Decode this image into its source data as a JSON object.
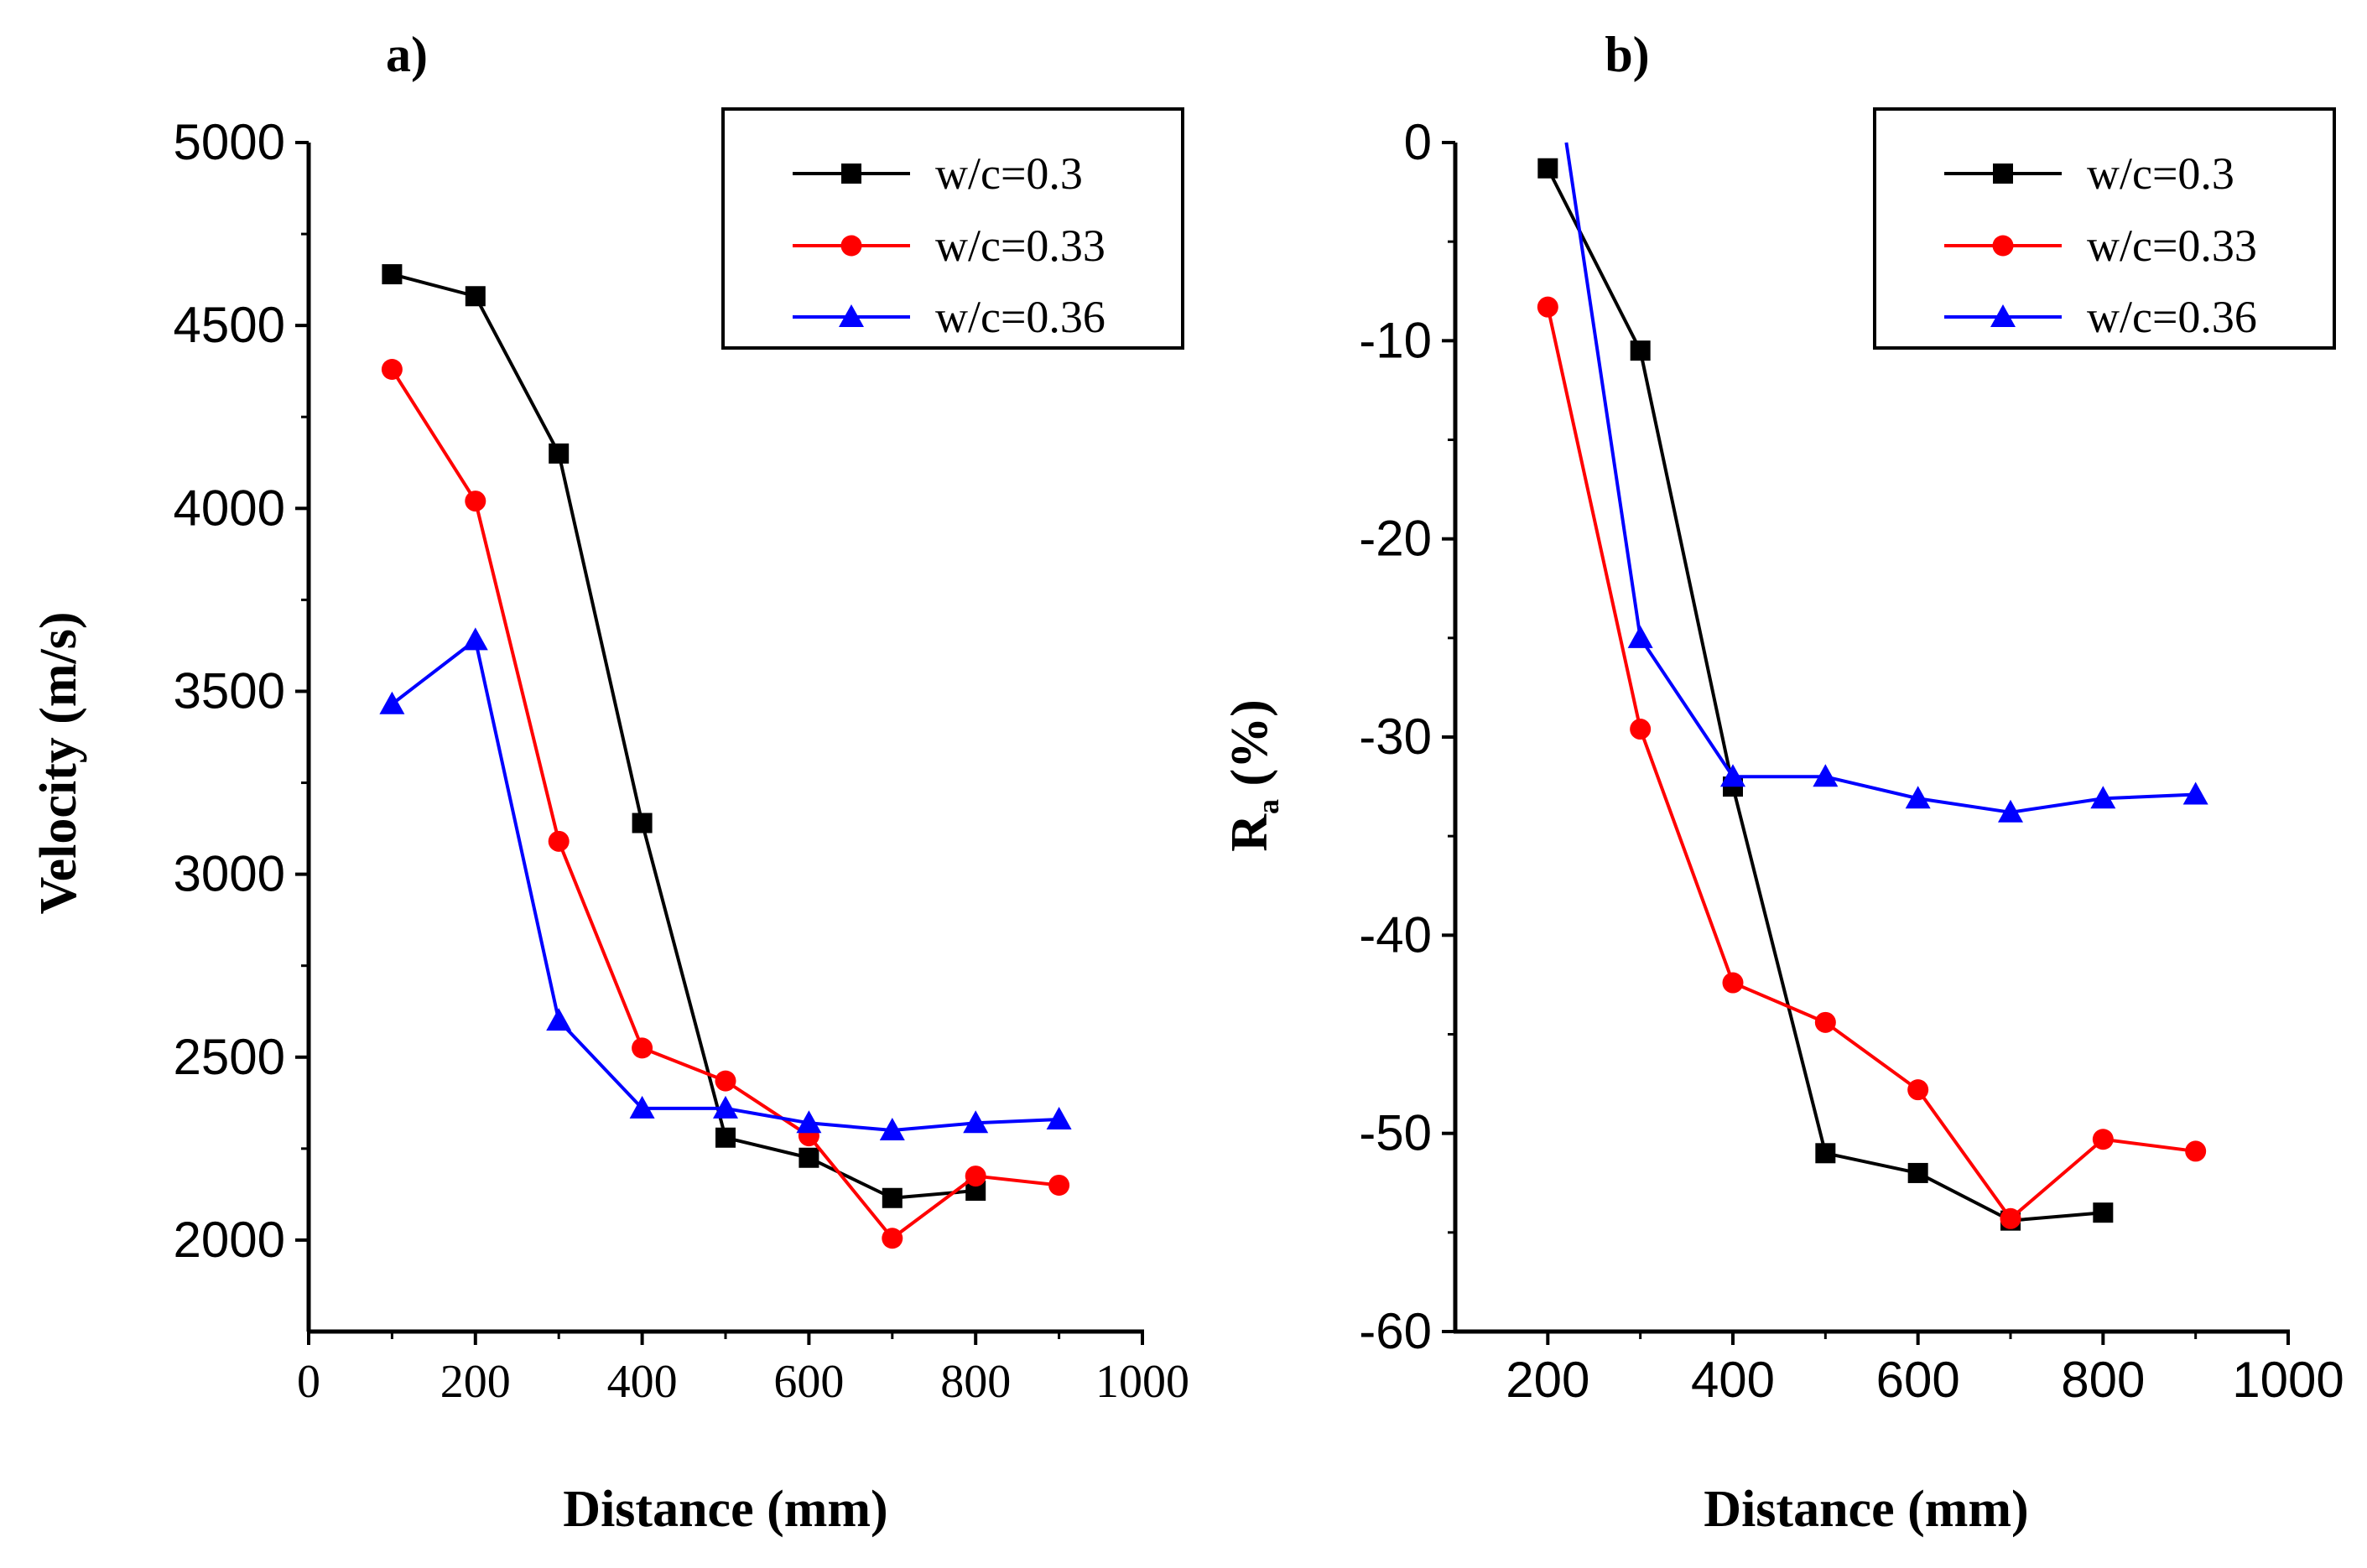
{
  "chart_data": [
    {
      "type": "line",
      "panel_label": "a)",
      "xlabel": "Distance (mm)",
      "ylabel": "Velocity (m/s)",
      "xlim": [
        0,
        1000
      ],
      "ylim": [
        1750,
        5000
      ],
      "xticks": [
        0,
        200,
        400,
        600,
        800,
        1000
      ],
      "yticks": [
        2000,
        2500,
        3000,
        3500,
        4000,
        4500,
        5000
      ],
      "xtick_labels": [
        "0",
        "200",
        "400",
        "600",
        "800",
        "1000"
      ],
      "ytick_labels": [
        "2000",
        "2500",
        "3000",
        "3500",
        "4000",
        "4500",
        "5000"
      ],
      "legend_position": "top-right",
      "series": [
        {
          "name": "w/c=0.3",
          "color": "#000000",
          "marker": "square",
          "x": [
            100,
            200,
            300,
            400,
            500,
            600,
            700,
            800
          ],
          "y": [
            4640,
            4580,
            4150,
            3140,
            2280,
            2225,
            2115,
            2135
          ]
        },
        {
          "name": "w/c=0.33",
          "color": "#ff0000",
          "marker": "circle",
          "x": [
            100,
            200,
            300,
            400,
            500,
            600,
            700,
            800,
            900
          ],
          "y": [
            4380,
            4020,
            3090,
            2525,
            2435,
            2285,
            2005,
            2175,
            2150
          ]
        },
        {
          "name": "w/c=0.36",
          "color": "#0000ff",
          "marker": "triangle",
          "x": [
            100,
            200,
            300,
            400,
            500,
            600,
            700,
            800,
            900
          ],
          "y": [
            3465,
            3640,
            2600,
            2360,
            2360,
            2320,
            2300,
            2320,
            2330
          ]
        }
      ]
    },
    {
      "type": "line",
      "panel_label": "b)",
      "xlabel": "Distance (mm)",
      "ylabel_main": "R",
      "ylabel_sub": "a",
      "ylabel_rest": " (%)",
      "xlim": [
        100,
        1000
      ],
      "ylim": [
        -60,
        0
      ],
      "xticks": [
        200,
        400,
        600,
        800,
        1000
      ],
      "yticks": [
        0,
        -10,
        -20,
        -30,
        -40,
        -50,
        -60
      ],
      "xtick_labels": [
        "200",
        "400",
        "600",
        "800",
        "1000"
      ],
      "ytick_labels": [
        "0",
        "-10",
        "-20",
        "-30",
        "-40",
        "-50",
        "-60"
      ],
      "legend_position": "top-right",
      "series": [
        {
          "name": "w/c=0.3",
          "color": "#000000",
          "marker": "square",
          "x": [
            200,
            300,
            400,
            500,
            600,
            700,
            800
          ],
          "y": [
            -1.3,
            -10.5,
            -32.5,
            -51.0,
            -52.0,
            -54.4,
            -54.0
          ]
        },
        {
          "name": "w/c=0.33",
          "color": "#ff0000",
          "marker": "circle",
          "x": [
            200,
            300,
            400,
            500,
            600,
            700,
            800,
            900
          ],
          "y": [
            -8.3,
            -29.6,
            -42.4,
            -44.4,
            -47.8,
            -54.3,
            -50.3,
            -50.9
          ]
        },
        {
          "name": "w/c=0.36",
          "color": "#0000ff",
          "marker": "triangle",
          "x": [
            220,
            300,
            400,
            500,
            600,
            700,
            800,
            900
          ],
          "y": [
            0,
            -25.0,
            -32.0,
            -32.0,
            -33.1,
            -33.8,
            -33.1,
            -32.9
          ],
          "markers_from_index": 1
        }
      ]
    }
  ]
}
